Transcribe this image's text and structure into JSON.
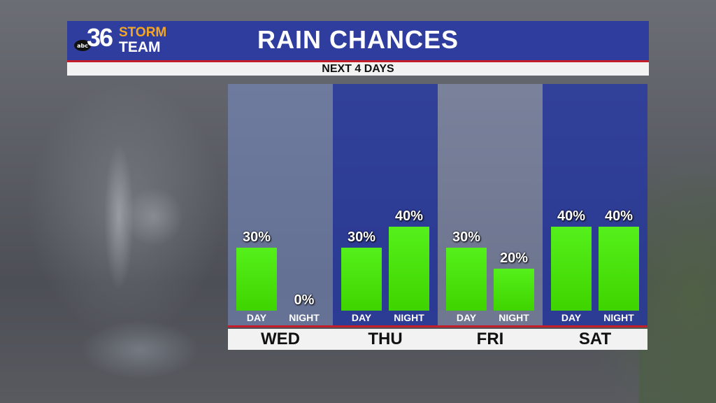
{
  "header": {
    "logo": {
      "network": "abc",
      "number": "36",
      "line1": "STORM",
      "line2": "TEAM"
    },
    "title": "RAIN CHANCES",
    "subtitle": "NEXT 4 DAYS"
  },
  "colors": {
    "header_blue": "#2f3e9e",
    "accent_red": "#c41e2a",
    "bar_green": "#4be00a",
    "logo_orange": "#f5a623"
  },
  "chart_data": {
    "type": "bar",
    "title": "RAIN CHANCES",
    "subtitle": "NEXT 4 DAYS",
    "ylim": [
      0,
      100
    ],
    "days": [
      {
        "name": "WED",
        "periods": [
          {
            "label": "DAY",
            "value": 30,
            "text": "30%"
          },
          {
            "label": "NIGHT",
            "value": 0,
            "text": "0%"
          }
        ]
      },
      {
        "name": "THU",
        "periods": [
          {
            "label": "DAY",
            "value": 30,
            "text": "30%"
          },
          {
            "label": "NIGHT",
            "value": 40,
            "text": "40%"
          }
        ]
      },
      {
        "name": "FRI",
        "periods": [
          {
            "label": "DAY",
            "value": 30,
            "text": "30%"
          },
          {
            "label": "NIGHT",
            "value": 20,
            "text": "20%"
          }
        ]
      },
      {
        "name": "SAT",
        "periods": [
          {
            "label": "DAY",
            "value": 40,
            "text": "40%"
          },
          {
            "label": "NIGHT",
            "value": 40,
            "text": "40%"
          }
        ]
      }
    ]
  }
}
